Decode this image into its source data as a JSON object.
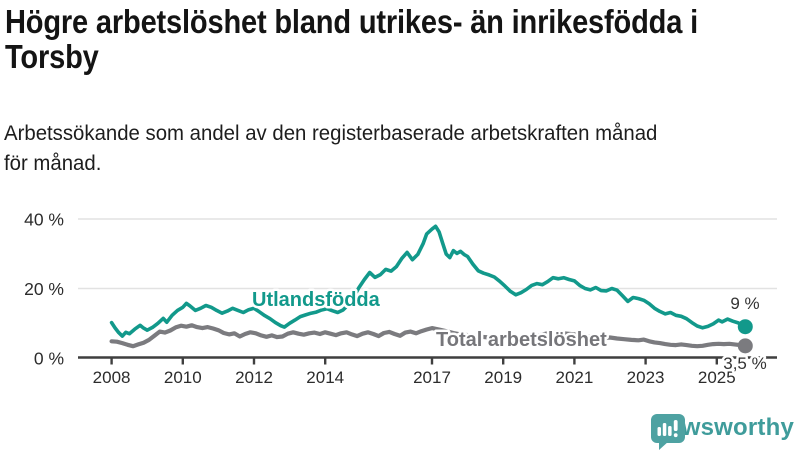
{
  "header": {
    "title_full": "Högre arbetslöshet bland utrikes- än inrikesfödda i Torsby",
    "title_lines": [
      "Högre arbetslöshet bland utrikes- än inrikesfödda i",
      "Torsby"
    ],
    "subtitle_full": "Arbetssökande som andel av den registerbaserade arbetskraften månad för månad.",
    "subtitle_lines": [
      "Arbetssökande som andel av den registerbaserade arbetskraften månad",
      "för månad."
    ]
  },
  "footer": {
    "brand": "Newsworthy",
    "brand_color": "#3F9C9B",
    "logo_icon": "bar-chart-speech-bubble-icon"
  },
  "chart_data": {
    "type": "line",
    "title": "Högre arbetslöshet bland utrikes- än inrikesfödda i Torsby",
    "subtitle": "Arbetssökande som andel av den registerbaserade arbetskraften månad för månad.",
    "unit": "%",
    "grid": "horizontal",
    "legend_position": "inline-labels",
    "colors": {
      "utlandsfodda": "#12998B",
      "total": "#7B7B7F",
      "gridline": "#E2E2E2",
      "axis": "#3F3F3F",
      "annotation_text": "#333333"
    },
    "x_axis": {
      "ticks": [
        2008,
        2010,
        2012,
        2014,
        2017,
        2019,
        2021,
        2023,
        2025
      ],
      "labels": [
        "2008",
        "2010",
        "2012",
        "2014",
        "2017",
        "2019",
        "2021",
        "2023",
        "2025"
      ],
      "range": [
        2007.05,
        2026.7
      ]
    },
    "y_axis": {
      "ticks": [
        0,
        20,
        40
      ],
      "labels": [
        "0 %",
        "20 %",
        "40 %"
      ],
      "range": [
        0,
        40
      ]
    },
    "series": [
      {
        "name": "Utlandsfödda",
        "color": "#12998B",
        "stroke_width": 3.6,
        "end_label": "9 %",
        "end_value": 9,
        "points": [
          [
            2008.0,
            10.2
          ],
          [
            2008.1,
            8.6
          ],
          [
            2008.2,
            7.3
          ],
          [
            2008.3,
            6.3
          ],
          [
            2008.4,
            7.4
          ],
          [
            2008.5,
            7.0
          ],
          [
            2008.65,
            8.3
          ],
          [
            2008.8,
            9.4
          ],
          [
            2008.9,
            8.6
          ],
          [
            2009.0,
            8.0
          ],
          [
            2009.15,
            8.8
          ],
          [
            2009.3,
            10.0
          ],
          [
            2009.45,
            11.4
          ],
          [
            2009.55,
            10.3
          ],
          [
            2009.7,
            12.3
          ],
          [
            2009.85,
            13.7
          ],
          [
            2010.0,
            14.6
          ],
          [
            2010.1,
            15.7
          ],
          [
            2010.2,
            15.0
          ],
          [
            2010.35,
            13.7
          ],
          [
            2010.5,
            14.3
          ],
          [
            2010.65,
            15.1
          ],
          [
            2010.8,
            14.6
          ],
          [
            2010.95,
            13.7
          ],
          [
            2011.1,
            12.9
          ],
          [
            2011.25,
            13.5
          ],
          [
            2011.4,
            14.3
          ],
          [
            2011.55,
            13.7
          ],
          [
            2011.7,
            13.1
          ],
          [
            2011.85,
            13.9
          ],
          [
            2012.0,
            14.3
          ],
          [
            2012.15,
            13.3
          ],
          [
            2012.3,
            12.2
          ],
          [
            2012.45,
            11.3
          ],
          [
            2012.6,
            10.2
          ],
          [
            2012.75,
            9.3
          ],
          [
            2012.85,
            8.9
          ],
          [
            2013.0,
            10.0
          ],
          [
            2013.15,
            10.9
          ],
          [
            2013.3,
            11.9
          ],
          [
            2013.45,
            12.4
          ],
          [
            2013.6,
            12.9
          ],
          [
            2013.75,
            13.2
          ],
          [
            2013.9,
            13.8
          ],
          [
            2014.05,
            14.2
          ],
          [
            2014.2,
            13.6
          ],
          [
            2014.35,
            13.1
          ],
          [
            2014.5,
            13.8
          ],
          [
            2014.65,
            15.3
          ],
          [
            2014.8,
            17.6
          ],
          [
            2014.95,
            20.3
          ],
          [
            2015.1,
            22.6
          ],
          [
            2015.25,
            24.6
          ],
          [
            2015.4,
            23.2
          ],
          [
            2015.55,
            24.0
          ],
          [
            2015.7,
            25.5
          ],
          [
            2015.85,
            25.0
          ],
          [
            2016.0,
            26.3
          ],
          [
            2016.15,
            28.6
          ],
          [
            2016.3,
            30.4
          ],
          [
            2016.45,
            28.3
          ],
          [
            2016.6,
            29.8
          ],
          [
            2016.75,
            32.9
          ],
          [
            2016.85,
            35.7
          ],
          [
            2017.0,
            37.1
          ],
          [
            2017.1,
            37.9
          ],
          [
            2017.2,
            36.3
          ],
          [
            2017.3,
            33.0
          ],
          [
            2017.4,
            29.9
          ],
          [
            2017.5,
            28.9
          ],
          [
            2017.6,
            30.9
          ],
          [
            2017.7,
            30.1
          ],
          [
            2017.8,
            30.7
          ],
          [
            2017.9,
            29.8
          ],
          [
            2018.0,
            29.2
          ],
          [
            2018.15,
            27.0
          ],
          [
            2018.3,
            25.1
          ],
          [
            2018.45,
            24.4
          ],
          [
            2018.6,
            23.9
          ],
          [
            2018.75,
            23.3
          ],
          [
            2018.9,
            22.1
          ],
          [
            2019.05,
            20.7
          ],
          [
            2019.2,
            19.2
          ],
          [
            2019.35,
            18.2
          ],
          [
            2019.5,
            18.8
          ],
          [
            2019.65,
            19.7
          ],
          [
            2019.8,
            20.9
          ],
          [
            2019.95,
            21.4
          ],
          [
            2020.1,
            21.1
          ],
          [
            2020.25,
            22.0
          ],
          [
            2020.4,
            23.1
          ],
          [
            2020.55,
            22.8
          ],
          [
            2020.7,
            23.1
          ],
          [
            2020.85,
            22.6
          ],
          [
            2021.0,
            22.2
          ],
          [
            2021.15,
            20.9
          ],
          [
            2021.3,
            20.0
          ],
          [
            2021.45,
            19.6
          ],
          [
            2021.6,
            20.3
          ],
          [
            2021.75,
            19.4
          ],
          [
            2021.9,
            19.3
          ],
          [
            2022.05,
            20.0
          ],
          [
            2022.2,
            19.5
          ],
          [
            2022.35,
            17.9
          ],
          [
            2022.5,
            16.3
          ],
          [
            2022.65,
            17.4
          ],
          [
            2022.8,
            17.1
          ],
          [
            2022.95,
            16.6
          ],
          [
            2023.1,
            15.6
          ],
          [
            2023.25,
            14.3
          ],
          [
            2023.4,
            13.4
          ],
          [
            2023.55,
            12.7
          ],
          [
            2023.7,
            13.1
          ],
          [
            2023.85,
            12.3
          ],
          [
            2024.0,
            12.0
          ],
          [
            2024.15,
            11.3
          ],
          [
            2024.3,
            10.2
          ],
          [
            2024.45,
            9.2
          ],
          [
            2024.6,
            8.7
          ],
          [
            2024.75,
            9.1
          ],
          [
            2024.9,
            9.8
          ],
          [
            2025.05,
            10.9
          ],
          [
            2025.15,
            10.4
          ],
          [
            2025.3,
            11.2
          ],
          [
            2025.45,
            10.6
          ],
          [
            2025.6,
            10.1
          ],
          [
            2025.7,
            9.4
          ],
          [
            2025.8,
            9.0
          ]
        ]
      },
      {
        "name": "Total arbetslöshet",
        "color": "#7B7B7F",
        "stroke_width": 4.2,
        "end_label": "3,5 %",
        "end_value": 3.5,
        "points": [
          [
            2008.0,
            4.8
          ],
          [
            2008.15,
            4.7
          ],
          [
            2008.3,
            4.3
          ],
          [
            2008.45,
            3.8
          ],
          [
            2008.6,
            3.4
          ],
          [
            2008.75,
            3.9
          ],
          [
            2008.9,
            4.4
          ],
          [
            2009.05,
            5.2
          ],
          [
            2009.2,
            6.4
          ],
          [
            2009.35,
            7.6
          ],
          [
            2009.5,
            7.3
          ],
          [
            2009.65,
            7.9
          ],
          [
            2009.8,
            8.8
          ],
          [
            2009.95,
            9.3
          ],
          [
            2010.1,
            9.0
          ],
          [
            2010.25,
            9.4
          ],
          [
            2010.4,
            8.9
          ],
          [
            2010.55,
            8.6
          ],
          [
            2010.7,
            8.9
          ],
          [
            2010.85,
            8.5
          ],
          [
            2011.0,
            8.0
          ],
          [
            2011.15,
            7.2
          ],
          [
            2011.3,
            6.8
          ],
          [
            2011.45,
            7.1
          ],
          [
            2011.6,
            6.2
          ],
          [
            2011.75,
            6.9
          ],
          [
            2011.9,
            7.4
          ],
          [
            2012.05,
            7.1
          ],
          [
            2012.2,
            6.5
          ],
          [
            2012.35,
            6.1
          ],
          [
            2012.5,
            6.5
          ],
          [
            2012.65,
            6.0
          ],
          [
            2012.8,
            6.2
          ],
          [
            2012.95,
            7.0
          ],
          [
            2013.1,
            7.4
          ],
          [
            2013.25,
            7.0
          ],
          [
            2013.4,
            6.7
          ],
          [
            2013.55,
            7.1
          ],
          [
            2013.7,
            7.3
          ],
          [
            2013.85,
            6.9
          ],
          [
            2014.0,
            7.4
          ],
          [
            2014.15,
            7.0
          ],
          [
            2014.3,
            6.6
          ],
          [
            2014.45,
            7.1
          ],
          [
            2014.6,
            7.4
          ],
          [
            2014.75,
            6.8
          ],
          [
            2014.9,
            6.3
          ],
          [
            2015.05,
            7.0
          ],
          [
            2015.2,
            7.4
          ],
          [
            2015.35,
            6.9
          ],
          [
            2015.5,
            6.3
          ],
          [
            2015.65,
            7.2
          ],
          [
            2015.8,
            7.5
          ],
          [
            2015.95,
            6.9
          ],
          [
            2016.1,
            6.4
          ],
          [
            2016.25,
            7.3
          ],
          [
            2016.4,
            7.6
          ],
          [
            2016.55,
            7.1
          ],
          [
            2016.7,
            7.7
          ],
          [
            2016.85,
            8.2
          ],
          [
            2017.0,
            8.6
          ],
          [
            2017.2,
            8.2
          ],
          [
            2017.4,
            7.7
          ],
          [
            2017.6,
            7.2
          ],
          [
            2017.8,
            6.8
          ],
          [
            2018.0,
            6.6
          ],
          [
            2018.2,
            6.4
          ],
          [
            2018.4,
            6.1
          ],
          [
            2018.6,
            5.9
          ],
          [
            2018.8,
            6.2
          ],
          [
            2019.0,
            6.1
          ],
          [
            2019.2,
            5.8
          ],
          [
            2019.4,
            5.7
          ],
          [
            2019.6,
            6.0
          ],
          [
            2019.8,
            6.3
          ],
          [
            2020.0,
            6.5
          ],
          [
            2020.2,
            7.0
          ],
          [
            2020.4,
            7.4
          ],
          [
            2020.6,
            7.2
          ],
          [
            2020.8,
            7.0
          ],
          [
            2021.0,
            6.8
          ],
          [
            2021.2,
            6.5
          ],
          [
            2021.4,
            6.2
          ],
          [
            2021.6,
            5.9
          ],
          [
            2021.8,
            5.8
          ],
          [
            2022.0,
            5.9
          ],
          [
            2022.2,
            5.6
          ],
          [
            2022.4,
            5.4
          ],
          [
            2022.6,
            5.2
          ],
          [
            2022.8,
            5.1
          ],
          [
            2022.95,
            5.3
          ],
          [
            2023.1,
            4.8
          ],
          [
            2023.25,
            4.5
          ],
          [
            2023.4,
            4.3
          ],
          [
            2023.55,
            4.0
          ],
          [
            2023.7,
            3.8
          ],
          [
            2023.85,
            3.7
          ],
          [
            2024.0,
            3.9
          ],
          [
            2024.15,
            3.7
          ],
          [
            2024.3,
            3.5
          ],
          [
            2024.45,
            3.4
          ],
          [
            2024.6,
            3.5
          ],
          [
            2024.75,
            3.8
          ],
          [
            2024.9,
            4.0
          ],
          [
            2025.05,
            4.1
          ],
          [
            2025.2,
            4.0
          ],
          [
            2025.35,
            4.1
          ],
          [
            2025.5,
            3.9
          ],
          [
            2025.65,
            3.7
          ],
          [
            2025.8,
            3.5
          ]
        ]
      }
    ]
  }
}
